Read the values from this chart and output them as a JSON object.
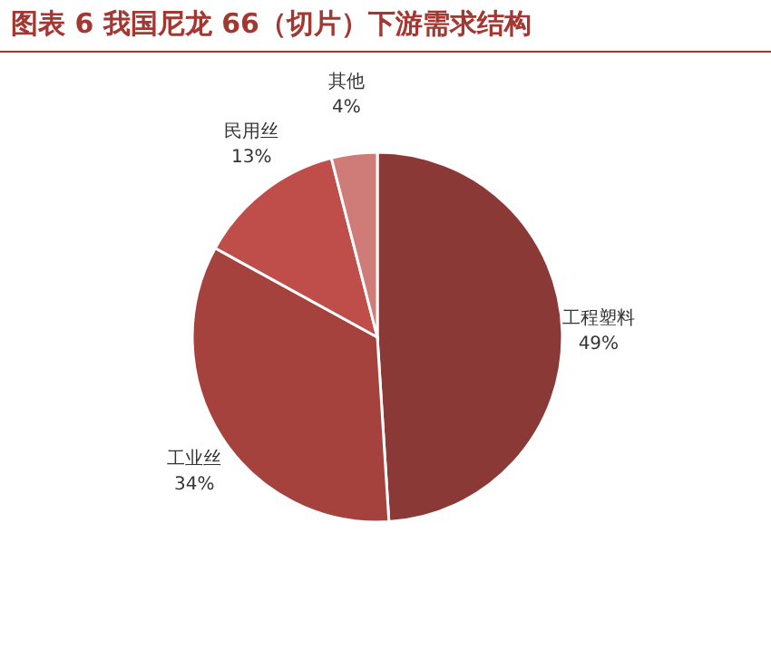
{
  "chart_data": {
    "type": "pie",
    "title": "图表 6  我国尼龙 66（切片）下游需求结构",
    "categories": [
      "工程塑料",
      "工业丝",
      "民用丝",
      "其他"
    ],
    "values": [
      49,
      34,
      13,
      4
    ],
    "value_labels": [
      "49%",
      "34%",
      "13%",
      "4%"
    ],
    "colors": [
      "#8b3936",
      "#a6423e",
      "#bf4e4a",
      "#cf7c78"
    ]
  }
}
